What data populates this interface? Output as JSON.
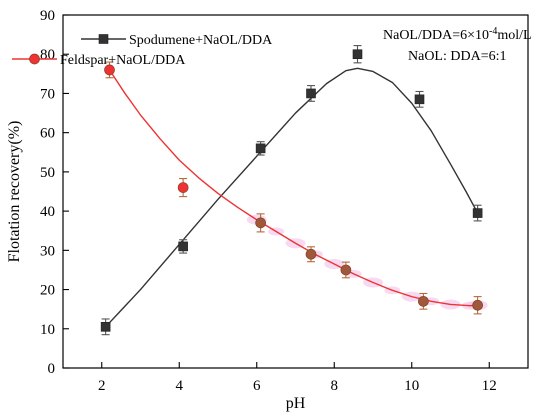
{
  "chart_data": {
    "type": "scatter",
    "title": "",
    "xlabel": "pH",
    "ylabel": "Flotation recovery(%)",
    "xlim": [
      1,
      13
    ],
    "ylim": [
      0,
      90
    ],
    "x_ticks": [
      2,
      4,
      6,
      8,
      10,
      12
    ],
    "y_ticks": [
      0,
      10,
      20,
      30,
      40,
      50,
      60,
      70,
      80,
      90
    ],
    "legend_position": "top-left",
    "grid": false,
    "series": [
      {
        "name": "Spodumene+NaOL/DDA",
        "color": "#333333",
        "marker": "square",
        "x": [
          2.1,
          4.1,
          6.1,
          7.4,
          8.6,
          10.2,
          11.7
        ],
        "y": [
          10.5,
          31,
          56,
          70,
          80,
          68.5,
          39.5
        ],
        "err": [
          2,
          1.7,
          1.7,
          2,
          2.2,
          2,
          2
        ],
        "fit": [
          [
            2.1,
            10.5
          ],
          [
            3.0,
            20.0
          ],
          [
            4.0,
            31.5
          ],
          [
            5.0,
            43.0
          ],
          [
            6.0,
            54.0
          ],
          [
            7.0,
            65.0
          ],
          [
            7.8,
            72.5
          ],
          [
            8.3,
            75.8
          ],
          [
            8.6,
            76.4
          ],
          [
            9.0,
            75.6
          ],
          [
            9.5,
            72.8
          ],
          [
            10.0,
            67.5
          ],
          [
            10.5,
            60.5
          ],
          [
            11.0,
            52.0
          ],
          [
            11.4,
            45.0
          ],
          [
            11.7,
            39.5
          ]
        ]
      },
      {
        "name": "Feldspar+NaOL/DDA",
        "color": "#ee3333",
        "marker": "circle",
        "x": [
          2.2,
          4.1,
          6.1,
          7.4,
          8.3,
          10.3,
          11.7
        ],
        "y": [
          76,
          46,
          37,
          29,
          25,
          17,
          16
        ],
        "err": [
          2,
          2.3,
          2.3,
          1.9,
          2,
          2,
          2.2
        ],
        "fit": [
          [
            2.2,
            76.0
          ],
          [
            2.6,
            70.0
          ],
          [
            3.0,
            64.5
          ],
          [
            3.5,
            58.5
          ],
          [
            4.0,
            53.0
          ],
          [
            4.5,
            48.5
          ],
          [
            5.0,
            44.5
          ],
          [
            5.5,
            41.0
          ],
          [
            6.0,
            37.8
          ],
          [
            6.5,
            34.8
          ],
          [
            7.0,
            31.8
          ],
          [
            7.5,
            29.0
          ],
          [
            8.0,
            26.5
          ],
          [
            8.5,
            24.0
          ],
          [
            9.0,
            21.8
          ],
          [
            9.5,
            19.8
          ],
          [
            10.0,
            18.2
          ],
          [
            10.5,
            17.0
          ],
          [
            11.0,
            16.2
          ],
          [
            11.5,
            15.9
          ],
          [
            11.7,
            16.0
          ]
        ]
      }
    ],
    "annotations": [
      {
        "parts": [
          {
            "text": "NaOL/DDA=6×10",
            "sup": false
          },
          {
            "text": "-4",
            "sup": true
          },
          {
            "text": "mol/L",
            "sup": false
          }
        ]
      },
      {
        "parts": [
          {
            "text": "NaOL: DDA=6:1",
            "sup": false
          }
        ]
      }
    ]
  }
}
